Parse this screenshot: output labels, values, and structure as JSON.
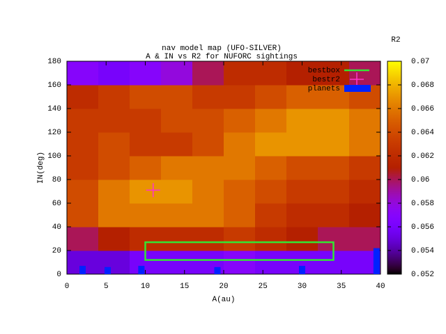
{
  "chart_data": {
    "type": "heatmap",
    "title": "nav model map (UFO-SILVER)",
    "subtitle": "A & IN vs R2 for NUFORC sightings",
    "xlabel": "A(au)",
    "ylabel": "IN(deg)",
    "colorbar_label": "R2",
    "xlim": [
      0,
      40
    ],
    "ylim": [
      0,
      180
    ],
    "xticks": [
      0,
      5,
      10,
      15,
      20,
      25,
      30,
      35,
      40
    ],
    "yticks": [
      0,
      20,
      40,
      60,
      80,
      100,
      120,
      140,
      160,
      180
    ],
    "zlim": [
      0.052,
      0.07
    ],
    "zticks": [
      0.052,
      0.054,
      0.056,
      0.058,
      0.06,
      0.062,
      0.064,
      0.066,
      0.068,
      0.07
    ],
    "z": [
      [
        0.055,
        0.055,
        0.056,
        0.056,
        0.056,
        0.057,
        0.056,
        0.056,
        0.056,
        0.056
      ],
      [
        0.06,
        0.061,
        0.062,
        0.062,
        0.062,
        0.063,
        0.062,
        0.061,
        0.06,
        0.06
      ],
      [
        0.064,
        0.066,
        0.066,
        0.066,
        0.066,
        0.065,
        0.063,
        0.062,
        0.062,
        0.061
      ],
      [
        0.064,
        0.066,
        0.067,
        0.067,
        0.066,
        0.065,
        0.064,
        0.063,
        0.063,
        0.062
      ],
      [
        0.063,
        0.064,
        0.065,
        0.066,
        0.066,
        0.066,
        0.065,
        0.064,
        0.064,
        0.063
      ],
      [
        0.063,
        0.064,
        0.063,
        0.063,
        0.064,
        0.066,
        0.067,
        0.067,
        0.067,
        0.066
      ],
      [
        0.063,
        0.063,
        0.063,
        0.064,
        0.064,
        0.065,
        0.066,
        0.067,
        0.067,
        0.066
      ],
      [
        0.062,
        0.063,
        0.064,
        0.064,
        0.063,
        0.063,
        0.064,
        0.065,
        0.065,
        0.064
      ],
      [
        0.057,
        0.056,
        0.057,
        0.058,
        0.06,
        0.062,
        0.062,
        0.061,
        0.061,
        0.06
      ]
    ],
    "series": [
      {
        "name": "bestbox",
        "color": "#33e633",
        "box": {
          "x": [
            10,
            34
          ],
          "y": [
            12,
            27
          ]
        }
      },
      {
        "name": "bestr2",
        "color": "#ff33cc",
        "x": [
          11
        ],
        "values": [
          71
        ]
      },
      {
        "name": "planets",
        "color": "#0022ff",
        "x": [
          2,
          5.2,
          9.5,
          19.2,
          30,
          39.5
        ],
        "values": [
          7,
          6,
          7,
          6,
          7,
          22
        ],
        "width": 0.8
      }
    ]
  }
}
